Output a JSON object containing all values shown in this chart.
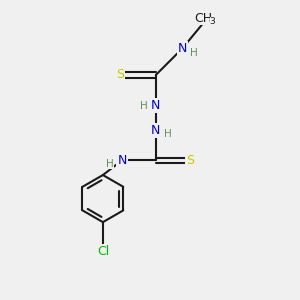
{
  "bg_color": "#f0f0f0",
  "bond_color": "#1a1a1a",
  "N_color": "#0000dd",
  "S_color": "#cccc00",
  "Cl_color": "#00bb00",
  "H_color": "#609060",
  "font_size": 9,
  "small_font_size": 7.5,
  "line_width": 1.5,
  "fig_w": 3.0,
  "fig_h": 3.0,
  "dpi": 100,
  "xlim": [
    0,
    10
  ],
  "ylim": [
    0,
    10
  ]
}
